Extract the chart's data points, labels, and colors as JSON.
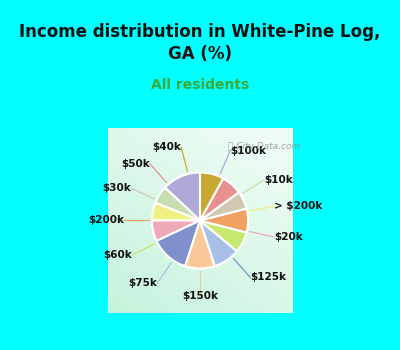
{
  "title": "Income distribution in White-Pine Log,\nGA (%)",
  "subtitle": "All residents",
  "labels": [
    "$100k",
    "$10k",
    "> $200k",
    "$20k",
    "$125k",
    "$150k",
    "$75k",
    "$60k",
    "$200k",
    "$30k",
    "$50k",
    "$40k"
  ],
  "values": [
    13,
    6,
    6,
    7,
    13,
    10,
    9,
    7,
    8,
    6,
    7,
    8
  ],
  "colors": [
    "#b0a8d8",
    "#c8ddb0",
    "#f0f080",
    "#f0a8b8",
    "#8090cc",
    "#f8c898",
    "#a8c0e8",
    "#c8e870",
    "#f0a060",
    "#d0c8b0",
    "#e89090",
    "#c8a830"
  ],
  "background_cyan": "#00ffff",
  "title_color": "#111111",
  "subtitle_color": "#3aaa3a",
  "watermark": "City-Data.com",
  "figsize": [
    4.0,
    3.5
  ],
  "dpi": 100,
  "title_fontsize": 12,
  "subtitle_fontsize": 10,
  "label_fontsize": 7.5
}
